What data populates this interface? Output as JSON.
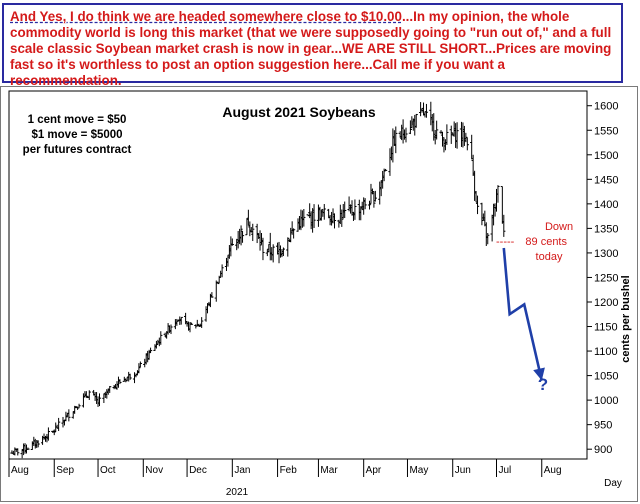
{
  "note": {
    "underlined": "And Yes, I do think we are headed somewhere close to $10.00",
    "rest": "...In my opinion, the whole commodity world is long this market (that we were supposedly going to \"run out of,\" and a full scale classic Soybean market crash is now in gear...WE ARE STILL SHORT...Prices are moving fast so it's worthless to post an option suggestion here...Call me if you want a recommendation."
  },
  "chart_data": {
    "type": "ohlc",
    "title": "August 2021 Soybeans",
    "contract_info": [
      "1 cent move = $50",
      "$1 move = $5000",
      "per futures contract"
    ],
    "ylabel": "cents per bushel",
    "xlabel": "Day",
    "year_label": "2021",
    "ylim": [
      880,
      1630
    ],
    "yticks": [
      900,
      950,
      1000,
      1050,
      1100,
      1150,
      1200,
      1250,
      1300,
      1350,
      1400,
      1450,
      1500,
      1550,
      1600
    ],
    "months": [
      "Aug",
      "Sep",
      "Oct",
      "Nov",
      "Dec",
      "Jan",
      "Feb",
      "Mar",
      "Apr",
      "May",
      "Jun",
      "Jul",
      "Aug"
    ],
    "grid": false,
    "price_path": [
      {
        "x": "2020-08-01",
        "y": 890
      },
      {
        "x": "2020-08-15",
        "y": 905
      },
      {
        "x": "2020-08-31",
        "y": 935
      },
      {
        "x": "2020-09-15",
        "y": 985
      },
      {
        "x": "2020-09-25",
        "y": 1015
      },
      {
        "x": "2020-10-01",
        "y": 995
      },
      {
        "x": "2020-10-12",
        "y": 1030
      },
      {
        "x": "2020-10-28",
        "y": 1060
      },
      {
        "x": "2020-11-10",
        "y": 1115
      },
      {
        "x": "2020-11-25",
        "y": 1170
      },
      {
        "x": "2020-12-01",
        "y": 1150
      },
      {
        "x": "2020-12-10",
        "y": 1155
      },
      {
        "x": "2020-12-31",
        "y": 1310
      },
      {
        "x": "2021-01-12",
        "y": 1365
      },
      {
        "x": "2021-01-22",
        "y": 1310
      },
      {
        "x": "2021-02-01",
        "y": 1300
      },
      {
        "x": "2021-02-15",
        "y": 1360
      },
      {
        "x": "2021-02-28",
        "y": 1380
      },
      {
        "x": "2021-03-15",
        "y": 1375
      },
      {
        "x": "2021-03-31",
        "y": 1395
      },
      {
        "x": "2021-04-10",
        "y": 1420
      },
      {
        "x": "2021-04-22",
        "y": 1530
      },
      {
        "x": "2021-05-01",
        "y": 1555
      },
      {
        "x": "2021-05-12",
        "y": 1585
      },
      {
        "x": "2021-05-25",
        "y": 1530
      },
      {
        "x": "2021-06-05",
        "y": 1545
      },
      {
        "x": "2021-06-12",
        "y": 1530
      },
      {
        "x": "2021-06-18",
        "y": 1390
      },
      {
        "x": "2021-06-25",
        "y": 1330
      },
      {
        "x": "2021-07-03",
        "y": 1440
      },
      {
        "x": "2021-07-06",
        "y": 1335
      }
    ],
    "forecast_path": [
      {
        "x": "2021-07-06",
        "y": 1310
      },
      {
        "x": "2021-07-10",
        "y": 1175
      },
      {
        "x": "2021-07-20",
        "y": 1195
      },
      {
        "x": "2021-08-01",
        "y": 1040
      }
    ],
    "annotation": {
      "lines": [
        "Down",
        "89 cents",
        "today"
      ],
      "dash": "-----"
    },
    "forecast_label": "?",
    "colors": {
      "bars": "#000000",
      "annotation": "#d41a1a",
      "forecast": "#1f3fa8",
      "note_text": "#d41a1a",
      "note_border": "#2a2aa0"
    }
  }
}
